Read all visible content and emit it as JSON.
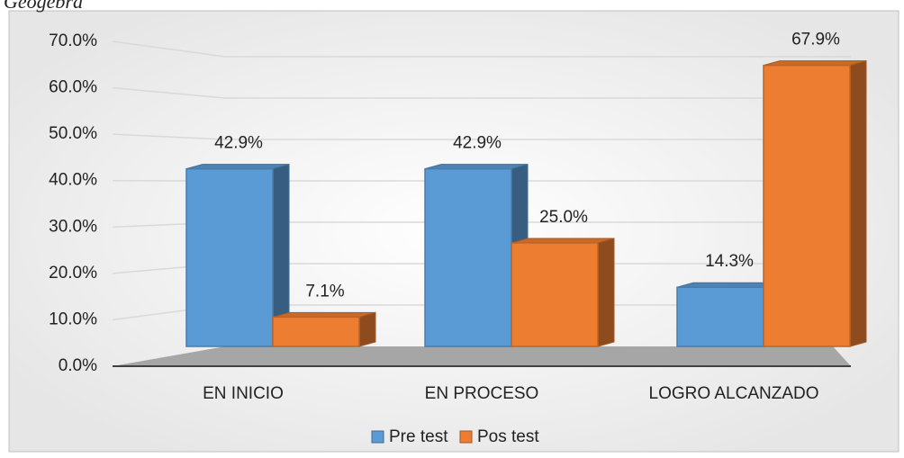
{
  "caption": "Geogebra",
  "chart_data": {
    "type": "bar3d",
    "categories": [
      "EN INICIO",
      "EN PROCESO",
      "LOGRO ALCANZADO"
    ],
    "series": [
      {
        "name": "Pre test",
        "color": "#5b9bd5",
        "values": [
          42.9,
          42.9,
          14.3
        ],
        "value_labels": [
          "42.9%",
          "42.9%",
          "14.3%"
        ]
      },
      {
        "name": "Pos test",
        "color": "#ed7d31",
        "values": [
          7.1,
          25.0,
          67.9
        ],
        "value_labels": [
          "7.1%",
          "25.0%",
          "67.9%"
        ]
      }
    ],
    "ylim": [
      0,
      70
    ],
    "yticks": [
      {
        "value": 0,
        "label": "0.0%"
      },
      {
        "value": 10,
        "label": "10.0%"
      },
      {
        "value": 20,
        "label": "20.0%"
      },
      {
        "value": 30,
        "label": "30.0%"
      },
      {
        "value": 40,
        "label": "40.0%"
      },
      {
        "value": 50,
        "label": "50.0%"
      },
      {
        "value": 60,
        "label": "60.0%"
      },
      {
        "value": 70,
        "label": "70.0%"
      }
    ],
    "grid": true,
    "legend": "bottom"
  }
}
